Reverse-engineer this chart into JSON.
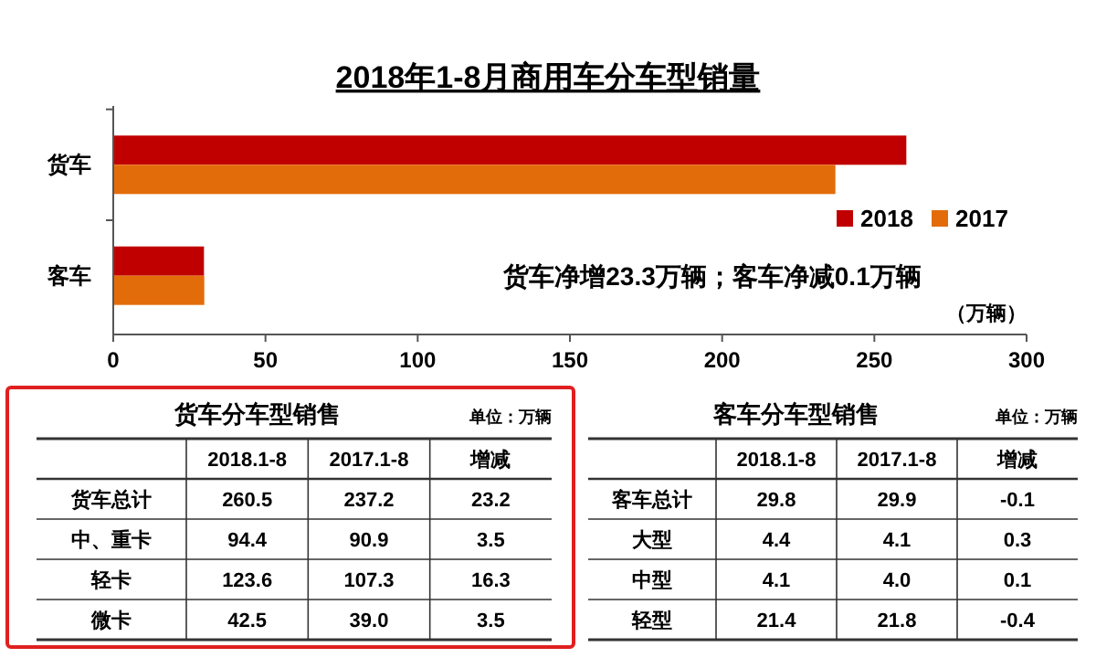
{
  "chart_data": [
    {
      "type": "bar",
      "title": "2018年1-8月商用车分车型销量",
      "orientation": "horizontal",
      "categories": [
        "货车",
        "客车"
      ],
      "xlabel": "（万辆）",
      "series": [
        {
          "name": "2018",
          "color": "#c00000",
          "values": [
            260.5,
            29.8
          ]
        },
        {
          "name": "2017",
          "color": "#e36c0a",
          "values": [
            237.2,
            29.9
          ]
        }
      ],
      "xlim": [
        0,
        300
      ],
      "xticks": [
        0,
        50,
        100,
        150,
        200,
        250,
        300
      ],
      "legend": "right",
      "annotations": [
        "货车净增23.3万辆；客车净减0.1万辆"
      ]
    },
    {
      "type": "other",
      "title": "货车分车型销售",
      "annotations": [
        "单位：万辆"
      ],
      "categories": [
        "货车总计",
        "中、重卡",
        "轻卡",
        "微卡"
      ],
      "series": [
        {
          "name": "2018.1-8",
          "values": [
            260.5,
            94.4,
            123.6,
            42.5
          ],
          "value_labels": [
            "260.5",
            "94.4",
            "123.6",
            "42.5"
          ]
        },
        {
          "name": "2017.1-8",
          "values": [
            237.2,
            90.9,
            107.3,
            39.0
          ],
          "value_labels": [
            "237.2",
            "90.9",
            "107.3",
            "39.0"
          ]
        },
        {
          "name": "增减",
          "values": [
            23.2,
            3.5,
            16.3,
            3.5
          ],
          "value_labels": [
            "23.2",
            "3.5",
            "16.3",
            "3.5"
          ]
        }
      ]
    },
    {
      "type": "other",
      "title": "客车分车型销售",
      "annotations": [
        "单位：万辆"
      ],
      "categories": [
        "客车总计",
        "大型",
        "中型",
        "轻型"
      ],
      "series": [
        {
          "name": "2018.1-8",
          "values": [
            29.8,
            4.4,
            4.1,
            21.4
          ],
          "value_labels": [
            "29.8",
            "4.4",
            "4.1",
            "21.4"
          ]
        },
        {
          "name": "2017.1-8",
          "values": [
            29.9,
            4.1,
            4.0,
            21.8
          ],
          "value_labels": [
            "29.9",
            "4.1",
            "4.0",
            "21.8"
          ]
        },
        {
          "name": "增减",
          "values": [
            -0.1,
            0.3,
            0.1,
            -0.4
          ],
          "value_labels": [
            "-0.1",
            "0.3",
            "0.1",
            "-0.4"
          ]
        }
      ]
    }
  ]
}
